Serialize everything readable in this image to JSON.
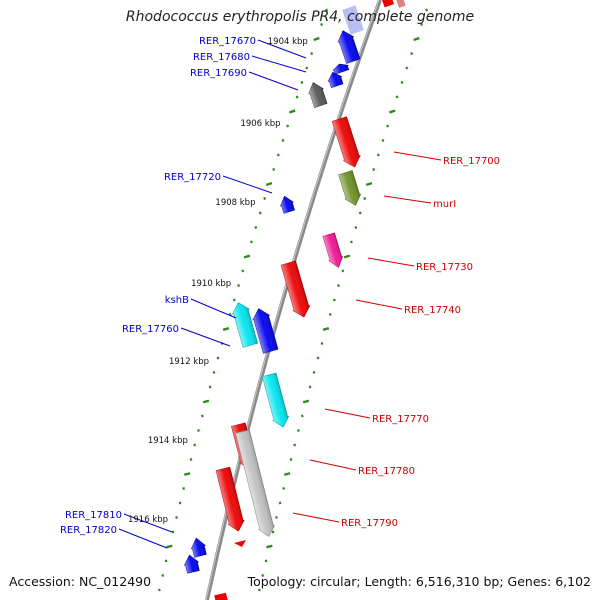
{
  "title": "Rhodococcus erythropolis PR4, complete genome",
  "accession_text": "Accession: NC_012490",
  "topology_text": "Topology: circular; Length: 6,516,310 bp; Genes: 6,102",
  "colors": {
    "backbone": "#8a8a8a",
    "tick": "#2e8b1e",
    "forward_label": "#0000cc",
    "reverse_label": "#cc0000"
  },
  "kbp_markers": [
    {
      "label": "1904 kbp"
    },
    {
      "label": "1906 kbp"
    },
    {
      "label": "1908 kbp"
    },
    {
      "label": "1910 kbp"
    },
    {
      "label": "1912 kbp"
    },
    {
      "label": "1914 kbp"
    },
    {
      "label": "1916 kbp"
    }
  ],
  "genes": [
    {
      "name": "RER_17670",
      "strand": "forward",
      "color": "#0000ee"
    },
    {
      "name": "RER_17680",
      "strand": "forward",
      "color": "#0000ee"
    },
    {
      "name": "RER_17690",
      "strand": "forward",
      "color": "#555555"
    },
    {
      "name": "RER_17700",
      "strand": "reverse",
      "color": "#ee0000"
    },
    {
      "name": "murI",
      "strand": "reverse",
      "color": "#6b8e23"
    },
    {
      "name": "RER_17720",
      "strand": "forward",
      "color": "#0000ee"
    },
    {
      "name": "RER_17730",
      "strand": "reverse",
      "color": "#ee1493"
    },
    {
      "name": "RER_17740",
      "strand": "reverse",
      "color": "#ee0000"
    },
    {
      "name": "kshB",
      "strand": "forward",
      "color": "#00e5ee"
    },
    {
      "name": "RER_17760",
      "strand": "forward",
      "color": "#0000ee"
    },
    {
      "name": "RER_17770",
      "strand": "reverse",
      "color": "#00e5ee"
    },
    {
      "name": "RER_17780",
      "strand": "reverse",
      "color": "#ee0000"
    },
    {
      "name": "RER_17790",
      "strand": "reverse",
      "color": "#c0c0c0"
    },
    {
      "name": "RER_17810",
      "strand": "forward",
      "color": "#0000ee"
    },
    {
      "name": "RER_17820",
      "strand": "forward",
      "color": "#0000ee"
    }
  ]
}
